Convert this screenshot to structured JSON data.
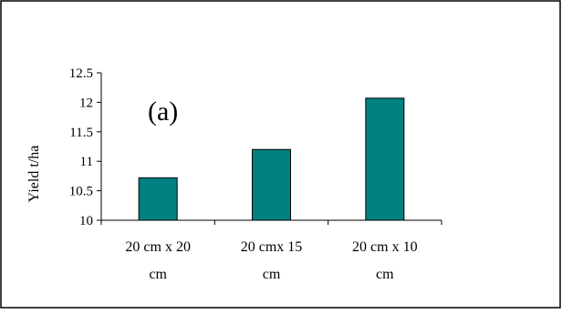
{
  "chart_data": {
    "type": "bar",
    "annotation": "(a)",
    "ylabel": "Yield t/ha",
    "xlabel": "",
    "categories": [
      [
        "20 cm x 20",
        "cm"
      ],
      [
        "20 cmx 15",
        "cm"
      ],
      [
        "20 cm x 10",
        "cm"
      ]
    ],
    "values": [
      10.72,
      11.2,
      12.07
    ],
    "ylim": [
      10,
      12.5
    ],
    "yticks": [
      "10",
      "10.5",
      "11",
      "11.5",
      "12",
      "12.5"
    ],
    "bar_color": "#008080",
    "grid": false,
    "legend": "none"
  }
}
